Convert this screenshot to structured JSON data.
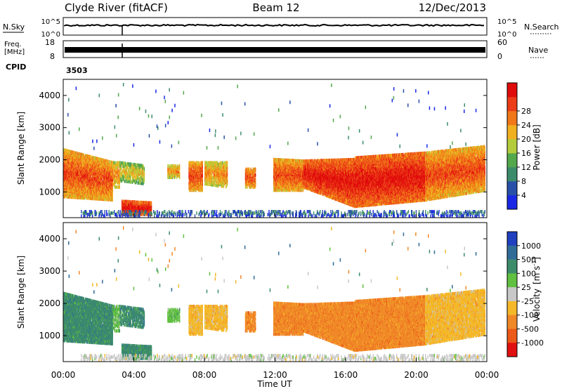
{
  "header": {
    "station": "Clyde River (fitACF)",
    "beam": "Beam 12",
    "date": "12/Dec/2013"
  },
  "top_panel": {
    "left_label": "N.Sky",
    "left_ticks": [
      "10^5",
      "10^0"
    ],
    "right_ticks": [
      "10^5",
      "10^0"
    ],
    "right_label": "N.Search"
  },
  "freq_panel": {
    "left_label_line1": "Freq.",
    "left_label_line2": "[MHz]",
    "left_ticks": [
      "18",
      "8"
    ],
    "right_ticks": [
      "60",
      "0"
    ],
    "right_label": "Nave"
  },
  "cpid": {
    "label": "CPID",
    "value": "3503"
  },
  "chart_data": [
    {
      "type": "heatmap",
      "name": "power",
      "ylabel": "Slant Range [km]",
      "ylim": [
        200,
        4500
      ],
      "yticks": [
        1000,
        2000,
        3000,
        4000
      ],
      "xlim": [
        0,
        24
      ],
      "colorbar": {
        "label": "Power [dB]",
        "ticks": [
          "4",
          "8",
          "12",
          "16",
          "20",
          "24",
          "28"
        ],
        "colors": [
          "#1a28e6",
          "#2850a8",
          "#3c8c6c",
          "#54a84c",
          "#b4cc3c",
          "#f0b020",
          "#f07818",
          "#ec3c18",
          "#e00c0c"
        ]
      }
    },
    {
      "type": "heatmap",
      "name": "velocity",
      "ylabel": "Slant Range [km]",
      "ylim": [
        200,
        4500
      ],
      "yticks": [
        1000,
        2000,
        3000,
        4000
      ],
      "xlim": [
        0,
        24
      ],
      "xlabel": "Time UT",
      "xticks": [
        "00:00",
        "04:00",
        "08:00",
        "12:00",
        "16:00",
        "20:00",
        "00:00"
      ],
      "colorbar": {
        "label": "Velocity",
        "unit": "[m s",
        "unit_exp": "-1",
        "ticks": [
          "1000",
          "500",
          "100",
          "25",
          "-25",
          "-100",
          "-500",
          "-1000"
        ],
        "colors": [
          "#2040c0",
          "#306c98",
          "#3c8c6c",
          "#60c040",
          "#c8c8c8",
          "#f4b828",
          "#f08828",
          "#ec5818",
          "#e01010"
        ]
      }
    }
  ]
}
